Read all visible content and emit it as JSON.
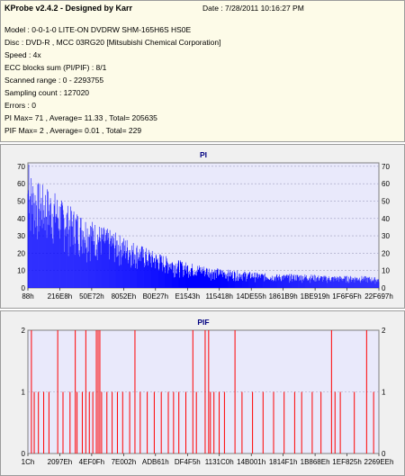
{
  "info": {
    "app_title": "KProbe v2.4.2 - Designed by Karr",
    "date": "Date : 7/28/2011 10:16:27 PM",
    "lines": [
      "Model : 0-0-1-0 LITE-ON DVDRW SHM-165H6S HS0E",
      "Disc : DVD-R , MCC 03RG20  [Mitsubishi Chemical Corporation]",
      "Speed : 4x",
      "ECC blocks sum (PI/PIF) : 8/1",
      "Scanned range : 0 - 2293755",
      "Sampling count : 127020",
      "Errors : 0",
      "PI Max= 71 , Average= 11.33 , Total= 205635",
      "PIF Max= 2 , Average= 0.01 , Total= 229"
    ]
  },
  "colors": {
    "pi_series": "#0000ff",
    "pif_series": "#ff0000",
    "plot_bg": "#e9e9fb",
    "panel_bg": "#f0f0f0",
    "info_bg": "#fdfbe8"
  },
  "chart_data": [
    {
      "type": "bar",
      "title": "PI",
      "ylim": [
        0,
        72
      ],
      "yticks": [
        0,
        10,
        20,
        30,
        40,
        50,
        60,
        70
      ],
      "xtick_labels": [
        "88h",
        "216E8h",
        "50E72h",
        "8052Eh",
        "B0E27h",
        "E1543h",
        "115418h",
        "14DE55h",
        "1861B9h",
        "1BE919h",
        "1F6F6Fh",
        "22F697h"
      ],
      "grid": true,
      "series_name": "PI",
      "x_range": [
        0,
        2293755
      ],
      "envelope": [
        [
          0,
          70
        ],
        [
          0.01,
          66
        ],
        [
          0.02,
          62
        ],
        [
          0.04,
          60
        ],
        [
          0.06,
          58
        ],
        [
          0.08,
          55
        ],
        [
          0.1,
          50
        ],
        [
          0.13,
          46
        ],
        [
          0.16,
          42
        ],
        [
          0.2,
          37
        ],
        [
          0.25,
          32
        ],
        [
          0.3,
          27
        ],
        [
          0.35,
          22
        ],
        [
          0.4,
          18
        ],
        [
          0.45,
          15
        ],
        [
          0.5,
          13
        ],
        [
          0.55,
          11
        ],
        [
          0.6,
          10
        ],
        [
          0.65,
          9
        ],
        [
          0.7,
          8
        ],
        [
          0.75,
          8
        ],
        [
          0.8,
          8
        ],
        [
          0.85,
          7
        ],
        [
          0.9,
          7
        ],
        [
          0.95,
          7
        ],
        [
          1.0,
          6
        ]
      ],
      "max": 71,
      "average": 11.33
    },
    {
      "type": "bar",
      "title": "PIF",
      "ylim": [
        0,
        2
      ],
      "yticks": [
        0,
        1,
        2
      ],
      "xtick_labels": [
        "1Ch",
        "2097Eh",
        "4EF0Fh",
        "7E002h",
        "ADB61h",
        "DF4F5h",
        "1131C0h",
        "14B001h",
        "1814F1h",
        "1B868Eh",
        "1EF825h",
        "2269EEh"
      ],
      "grid": true,
      "series_name": "PIF",
      "x_range": [
        0,
        2293755
      ],
      "spikes": [
        {
          "x": 0.01,
          "v": 2
        },
        {
          "x": 0.018,
          "v": 1
        },
        {
          "x": 0.03,
          "v": 1
        },
        {
          "x": 0.045,
          "v": 1
        },
        {
          "x": 0.06,
          "v": 1
        },
        {
          "x": 0.085,
          "v": 2
        },
        {
          "x": 0.1,
          "v": 1
        },
        {
          "x": 0.12,
          "v": 1
        },
        {
          "x": 0.135,
          "v": 2
        },
        {
          "x": 0.14,
          "v": 1
        },
        {
          "x": 0.155,
          "v": 1
        },
        {
          "x": 0.165,
          "v": 2
        },
        {
          "x": 0.175,
          "v": 1
        },
        {
          "x": 0.185,
          "v": 1
        },
        {
          "x": 0.195,
          "v": 2
        },
        {
          "x": 0.2,
          "v": 2
        },
        {
          "x": 0.205,
          "v": 2
        },
        {
          "x": 0.21,
          "v": 1
        },
        {
          "x": 0.225,
          "v": 1
        },
        {
          "x": 0.24,
          "v": 1
        },
        {
          "x": 0.255,
          "v": 1
        },
        {
          "x": 0.27,
          "v": 1
        },
        {
          "x": 0.29,
          "v": 1
        },
        {
          "x": 0.305,
          "v": 2
        },
        {
          "x": 0.32,
          "v": 1
        },
        {
          "x": 0.34,
          "v": 1
        },
        {
          "x": 0.36,
          "v": 1
        },
        {
          "x": 0.38,
          "v": 1
        },
        {
          "x": 0.4,
          "v": 1
        },
        {
          "x": 0.415,
          "v": 1
        },
        {
          "x": 0.43,
          "v": 1
        },
        {
          "x": 0.45,
          "v": 1
        },
        {
          "x": 0.47,
          "v": 2
        },
        {
          "x": 0.48,
          "v": 1
        },
        {
          "x": 0.505,
          "v": 2
        },
        {
          "x": 0.515,
          "v": 2
        },
        {
          "x": 0.52,
          "v": 1
        },
        {
          "x": 0.53,
          "v": 1
        },
        {
          "x": 0.545,
          "v": 1
        },
        {
          "x": 0.56,
          "v": 1
        },
        {
          "x": 0.59,
          "v": 2
        },
        {
          "x": 0.61,
          "v": 1
        },
        {
          "x": 0.64,
          "v": 1
        },
        {
          "x": 0.67,
          "v": 1
        },
        {
          "x": 0.7,
          "v": 1
        },
        {
          "x": 0.73,
          "v": 1
        },
        {
          "x": 0.76,
          "v": 1
        },
        {
          "x": 0.78,
          "v": 1
        },
        {
          "x": 0.81,
          "v": 1
        },
        {
          "x": 0.835,
          "v": 1
        },
        {
          "x": 0.865,
          "v": 2
        },
        {
          "x": 0.875,
          "v": 1
        },
        {
          "x": 0.89,
          "v": 1
        },
        {
          "x": 0.93,
          "v": 1
        },
        {
          "x": 0.965,
          "v": 2
        },
        {
          "x": 0.985,
          "v": 1
        }
      ],
      "max": 2,
      "average": 0.01
    }
  ]
}
